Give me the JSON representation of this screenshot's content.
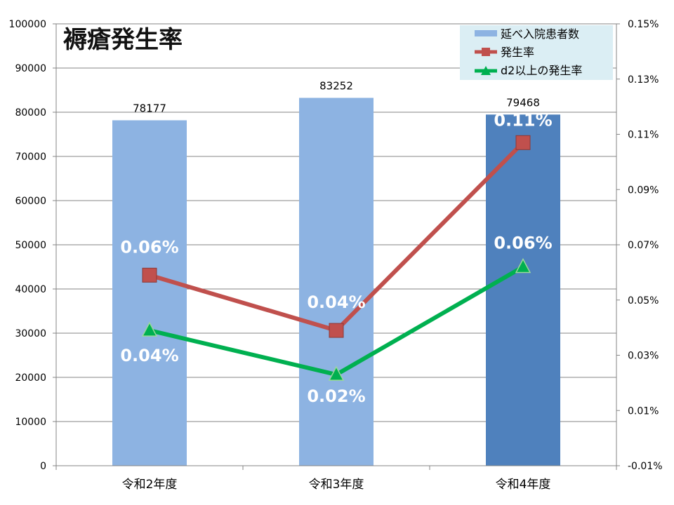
{
  "chart_data": {
    "type": "bar",
    "title": "褥瘡発生率",
    "categories": [
      "令和2年度",
      "令和3年度",
      "令和4年度"
    ],
    "y_left": {
      "min": 0,
      "max": 100000,
      "ticks": [
        "0",
        "10000",
        "20000",
        "30000",
        "40000",
        "50000",
        "60000",
        "70000",
        "80000",
        "90000",
        "100000"
      ]
    },
    "y_right": {
      "min": -0.01,
      "max": 0.15,
      "ticks": [
        "-0.01%",
        "0.01%",
        "0.03%",
        "0.05%",
        "0.07%",
        "0.09%",
        "0.11%",
        "0.13%",
        "0.15%"
      ]
    },
    "grid": true,
    "legend_position": "top-right",
    "series": [
      {
        "name": "延べ入院患者数",
        "type": "bar",
        "axis": "left",
        "values": [
          78177,
          83252,
          79468
        ],
        "labels": [
          "78177",
          "83252",
          "79468"
        ],
        "colors": [
          "#8db3e2",
          "#8db3e2",
          "#4f81bd"
        ]
      },
      {
        "name": "発生率",
        "type": "line",
        "axis": "right",
        "marker": "square",
        "color": "#c0504d",
        "values": [
          0.059,
          0.039,
          0.107
        ],
        "labels": [
          "0.06%",
          "0.04%",
          "0.11%"
        ]
      },
      {
        "name": "d2以上の発生率",
        "type": "line",
        "axis": "right",
        "marker": "triangle",
        "color": "#00b050",
        "values": [
          0.039,
          0.023,
          0.062
        ],
        "labels": [
          "0.04%",
          "0.02%",
          "0.06%"
        ]
      }
    ]
  }
}
